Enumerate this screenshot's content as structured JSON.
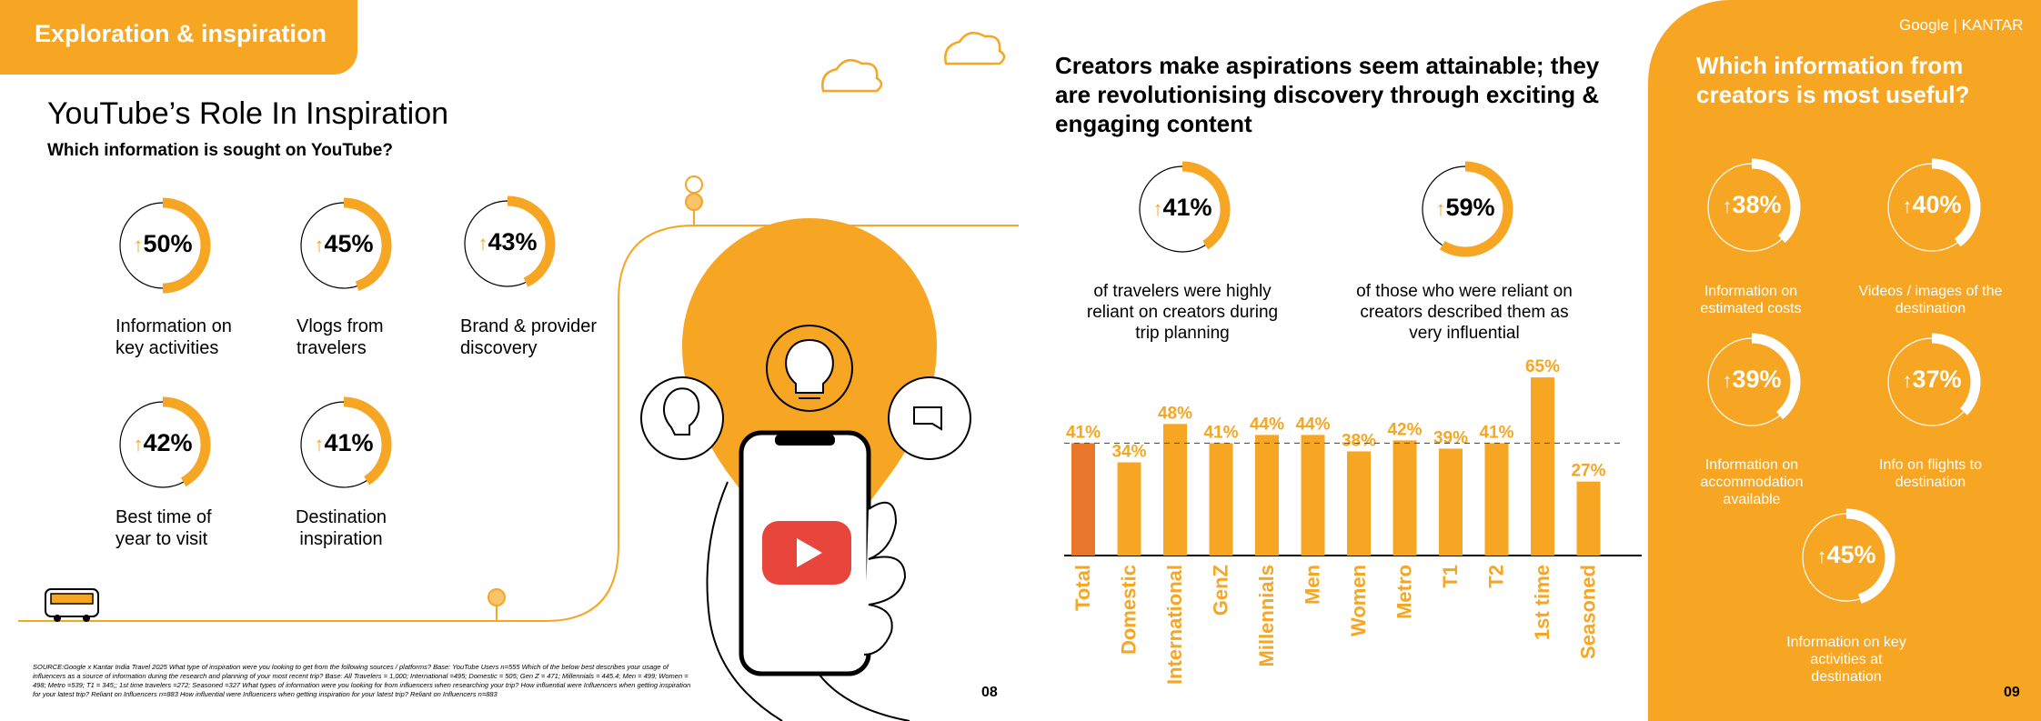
{
  "left": {
    "section_tag": "Exploration & inspiration",
    "title": "YouTube’s Role In Inspiration",
    "subtitle": "Which information is sought on YouTube?",
    "stats": [
      {
        "value": "50%",
        "fraction": 0.5,
        "label": "Information on key activities"
      },
      {
        "value": "45%",
        "fraction": 0.45,
        "label": "Vlogs from travelers"
      },
      {
        "value": "43%",
        "fraction": 0.43,
        "label": "Brand & provider discovery"
      },
      {
        "value": "42%",
        "fraction": 0.42,
        "label": "Best time of year to visit"
      },
      {
        "value": "41%",
        "fraction": 0.41,
        "label": "Destination inspiration"
      }
    ],
    "source": "SOURCE:Google x Kantar India Travel 2025 What type of inspiration were you looking to get from the following sources / platforms? Base: YouTube Users n=555 Which of the below best describes your usage of influencers as a source of information during the research and planning of your most recent trip? Base: All Travelers = 1,000; International =495; Domestic = 505; Gen Z = 471; Millennials = 445.4; Men = 499; Women = 498; Metro =539; T1 = 345;; 1st time travelers =272; Seasoned =327 What types of information were you looking for from influencers when researching your trip? How influential were Influencers when getting inspiration for your latest trip? Reliant on Influencers n=883 How influential were Influencers when getting inspiration for your latest trip? Reliant on Influencers n=883",
    "page_number": "08"
  },
  "middle": {
    "title": "Creators make aspirations seem attainable; they are revolutionising discovery through exciting & engaging content",
    "stats": [
      {
        "value": "41%",
        "fraction": 0.41,
        "label": "of travelers were highly reliant on creators during trip planning"
      },
      {
        "value": "59%",
        "fraction": 0.59,
        "label": "of those who were reliant on creators described them as very influential"
      }
    ]
  },
  "chart_data": {
    "type": "bar",
    "categories": [
      "Total",
      "Domestic",
      "International",
      "GenZ",
      "Millennials",
      "Men",
      "Women",
      "Metro",
      "T1",
      "T2",
      "1st time",
      "Seasoned"
    ],
    "values": [
      41,
      34,
      48,
      41,
      44,
      44,
      38,
      42,
      39,
      41,
      65,
      27
    ],
    "value_labels": [
      "41%",
      "34%",
      "48%",
      "41%",
      "44%",
      "44%",
      "38%",
      "42%",
      "39%",
      "41%",
      "65%",
      "27%"
    ],
    "reference_line": 41,
    "ylim": [
      0,
      70
    ],
    "highlight_color": "#E8762B",
    "bar_color": "#F6A623"
  },
  "right": {
    "brand": "Google | KANTAR",
    "title": "Which information from creators is most useful?",
    "stats": [
      {
        "value": "38%",
        "fraction": 0.38,
        "label": "Information on estimated costs"
      },
      {
        "value": "40%",
        "fraction": 0.4,
        "label": "Videos / images of the destination"
      },
      {
        "value": "39%",
        "fraction": 0.39,
        "label": "Information on accommodation available"
      },
      {
        "value": "37%",
        "fraction": 0.37,
        "label": "Info on flights to destination"
      },
      {
        "value": "45%",
        "fraction": 0.45,
        "label": "Information on key activities at destination"
      }
    ],
    "page_number": "09"
  },
  "colors": {
    "accent": "#F6A623",
    "dark_accent": "#E8762B",
    "play_red": "#E8453C"
  },
  "icons": [
    "bus-icon",
    "cloud-icon",
    "lightbulb-icon",
    "chat-bubble-icon",
    "play-icon",
    "phone-illustration",
    "hand-illustration",
    "up-arrow-icon"
  ]
}
